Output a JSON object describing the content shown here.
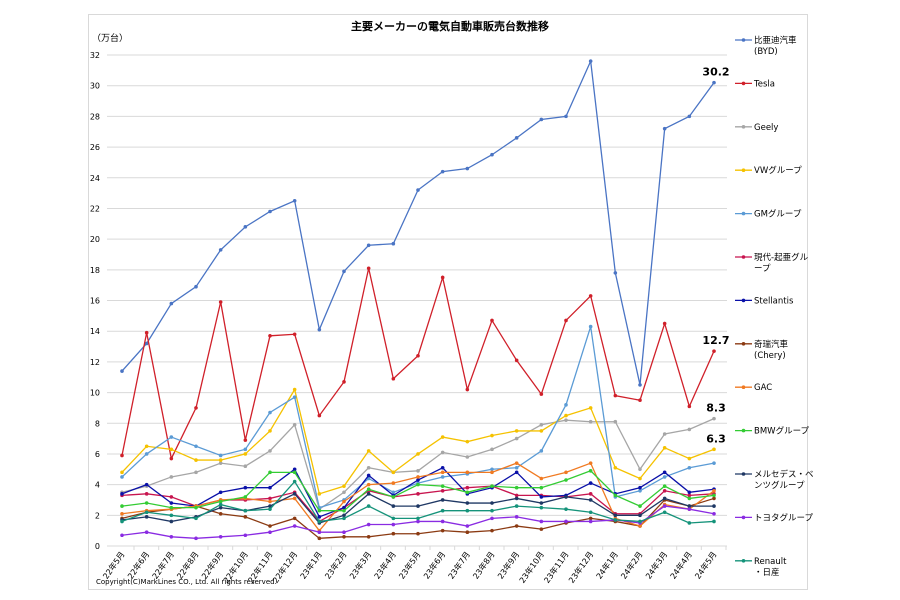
{
  "chart_data": {
    "type": "line",
    "title": "主要メーカーの電気自動車販売台数推移",
    "ylabel": "（万台）",
    "ylim": [
      0,
      32
    ],
    "ytick_step": 2,
    "grid": true,
    "legend_placement": "right",
    "copyright": "Copyright(C)MarkLines CO., Ltd. All rights reserved.",
    "categories": [
      "22年5月",
      "22年6月",
      "22年7月",
      "22年8月",
      "22年9月",
      "22年10月",
      "22年11月",
      "22年12月",
      "23年1月",
      "23年2月",
      "23年3月",
      "23年4月",
      "23年5月",
      "23年6月",
      "23年7月",
      "23年8月",
      "23年9月",
      "23年10月",
      "23年11月",
      "23年12月",
      "24年1月",
      "24年2月",
      "24年3月",
      "24年4月",
      "24年5月"
    ],
    "series": [
      {
        "name": "比亜迪汽車\n(BYD)",
        "color": "#4a74c4",
        "values": [
          11.4,
          13.2,
          15.8,
          16.9,
          19.3,
          20.8,
          21.8,
          22.5,
          14.1,
          17.9,
          19.6,
          19.7,
          23.2,
          24.4,
          24.6,
          25.5,
          26.6,
          27.8,
          28.0,
          31.6,
          17.8,
          10.5,
          27.2,
          28.0,
          30.2
        ],
        "end_label": "30.2"
      },
      {
        "name": "Tesla",
        "color": "#d0202a",
        "values": [
          5.9,
          13.9,
          5.7,
          9.0,
          15.9,
          6.9,
          13.7,
          13.8,
          8.5,
          10.7,
          18.1,
          10.9,
          12.4,
          17.5,
          10.2,
          14.7,
          12.1,
          9.9,
          14.7,
          16.3,
          9.8,
          9.5,
          14.5,
          9.1,
          12.7
        ],
        "end_label": "12.7"
      },
      {
        "name": "Geely",
        "color": "#a6a6a6",
        "values": [
          3.5,
          3.9,
          4.5,
          4.8,
          5.4,
          5.2,
          6.2,
          7.9,
          2.4,
          3.5,
          5.1,
          4.8,
          4.9,
          6.1,
          5.8,
          6.3,
          7.0,
          7.9,
          8.2,
          8.1,
          8.1,
          5.0,
          7.3,
          7.6,
          8.3
        ],
        "end_label": "8.3"
      },
      {
        "name": "VWグループ",
        "color": "#f5c200",
        "values": [
          4.8,
          6.5,
          6.3,
          5.6,
          5.6,
          6.0,
          7.5,
          10.2,
          3.4,
          3.9,
          6.2,
          4.8,
          6.0,
          7.1,
          6.8,
          7.2,
          7.5,
          7.5,
          8.5,
          9.0,
          5.1,
          4.4,
          6.4,
          5.7,
          6.3
        ],
        "end_label": "6.3"
      },
      {
        "name": "GMグループ",
        "color": "#5b9bd5",
        "values": [
          4.5,
          6.0,
          7.1,
          6.5,
          5.9,
          6.3,
          8.7,
          9.7,
          2.5,
          3.0,
          4.4,
          3.5,
          4.1,
          4.5,
          4.7,
          5.0,
          5.1,
          6.2,
          9.2,
          14.3,
          3.2,
          3.6,
          4.5,
          5.1,
          5.4
        ]
      },
      {
        "name": "現代-起亜グループ",
        "color": "#c8154f",
        "values": [
          3.3,
          3.4,
          3.2,
          2.6,
          3.0,
          3.0,
          3.1,
          3.5,
          1.6,
          2.5,
          3.6,
          3.2,
          3.4,
          3.6,
          3.8,
          3.9,
          3.3,
          3.3,
          3.2,
          3.4,
          2.1,
          2.1,
          3.6,
          3.3,
          3.4
        ]
      },
      {
        "name": "Stellantis",
        "color": "#0a10a8",
        "values": [
          3.4,
          4.0,
          2.8,
          2.6,
          3.5,
          3.8,
          3.8,
          5.0,
          1.9,
          2.5,
          4.6,
          3.3,
          4.3,
          5.1,
          3.4,
          3.8,
          4.8,
          3.2,
          3.3,
          4.1,
          3.4,
          3.8,
          4.8,
          3.5,
          3.7
        ]
      },
      {
        "name": "奇瑞汽車\n(Chery)",
        "color": "#8b3a12",
        "values": [
          1.8,
          2.2,
          2.4,
          2.6,
          2.1,
          1.9,
          1.3,
          1.8,
          0.5,
          0.6,
          0.6,
          0.8,
          0.8,
          1.0,
          0.9,
          1.0,
          1.3,
          1.1,
          1.5,
          1.8,
          1.6,
          1.3,
          3.0,
          2.6,
          3.1
        ]
      },
      {
        "name": "GAC",
        "color": "#f07a22",
        "values": [
          2.1,
          2.3,
          2.4,
          2.6,
          3.0,
          3.1,
          2.9,
          3.1,
          1.0,
          2.9,
          4.0,
          4.1,
          4.5,
          4.8,
          4.8,
          4.8,
          5.4,
          4.4,
          4.8,
          5.4,
          1.8,
          1.3,
          2.7,
          2.4,
          3.6
        ]
      },
      {
        "name": "BMWグループ",
        "color": "#33cc33",
        "values": [
          2.6,
          2.8,
          2.5,
          2.5,
          2.9,
          3.2,
          4.8,
          4.8,
          2.3,
          2.3,
          3.7,
          3.2,
          4.0,
          3.9,
          3.5,
          3.9,
          3.8,
          3.8,
          4.3,
          4.9,
          3.3,
          2.6,
          3.9,
          3.1,
          3.3
        ]
      },
      {
        "name": "メルセデス・ベンツグループ",
        "color": "#1f3864",
        "values": [
          1.7,
          1.9,
          1.6,
          1.9,
          2.5,
          2.3,
          2.6,
          3.4,
          1.5,
          2.0,
          3.4,
          2.6,
          2.6,
          3.0,
          2.8,
          2.8,
          3.1,
          2.8,
          3.2,
          3.0,
          2.0,
          2.0,
          3.1,
          2.6,
          2.6
        ]
      },
      {
        "name": "トヨタグループ",
        "color": "#8a2be2",
        "values": [
          0.7,
          0.9,
          0.6,
          0.5,
          0.6,
          0.7,
          0.9,
          1.3,
          0.9,
          0.9,
          1.4,
          1.4,
          1.6,
          1.6,
          1.3,
          1.8,
          1.9,
          1.6,
          1.6,
          1.6,
          1.7,
          1.5,
          2.6,
          2.4,
          2.1
        ]
      },
      {
        "name": "Renault・日産",
        "color": "#15937a",
        "values": [
          1.6,
          2.2,
          2.0,
          1.8,
          2.7,
          2.3,
          2.4,
          4.2,
          1.6,
          1.8,
          2.6,
          1.8,
          1.8,
          2.3,
          2.3,
          2.3,
          2.6,
          2.5,
          2.4,
          2.2,
          1.7,
          1.6,
          2.2,
          1.5,
          1.6
        ]
      }
    ]
  }
}
